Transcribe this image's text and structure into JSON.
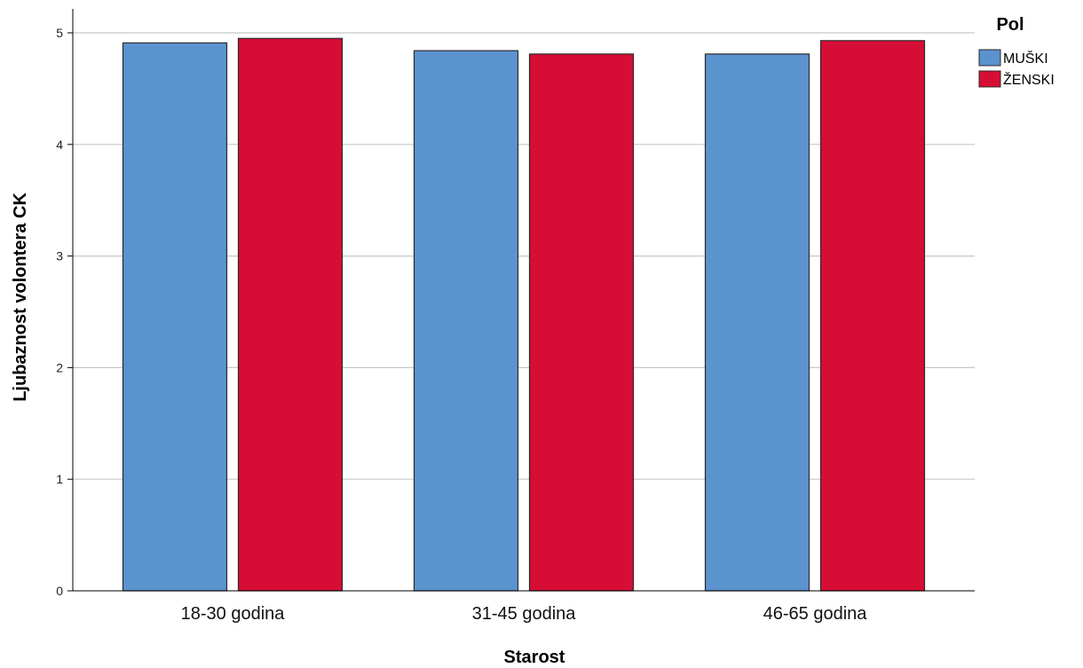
{
  "chart_data": {
    "type": "bar",
    "categories": [
      "18-30 godina",
      "31-45 godina",
      "46-65 godina"
    ],
    "series": [
      {
        "name": "MUŠKI",
        "color": "#5b93cf",
        "values": [
          4.91,
          4.84,
          4.81
        ]
      },
      {
        "name": "ŽENSKI",
        "color": "#d60e35",
        "values": [
          4.95,
          4.81,
          4.93
        ]
      }
    ],
    "xlabel": "Starost",
    "ylabel": "Ljubaznost volontera CK",
    "ylim": [
      0,
      5.2
    ],
    "yticks": [
      "0",
      "1",
      "2",
      "3",
      "4",
      "5"
    ],
    "grid": true,
    "legend": {
      "title": "Pol",
      "placement": "top-right"
    }
  }
}
